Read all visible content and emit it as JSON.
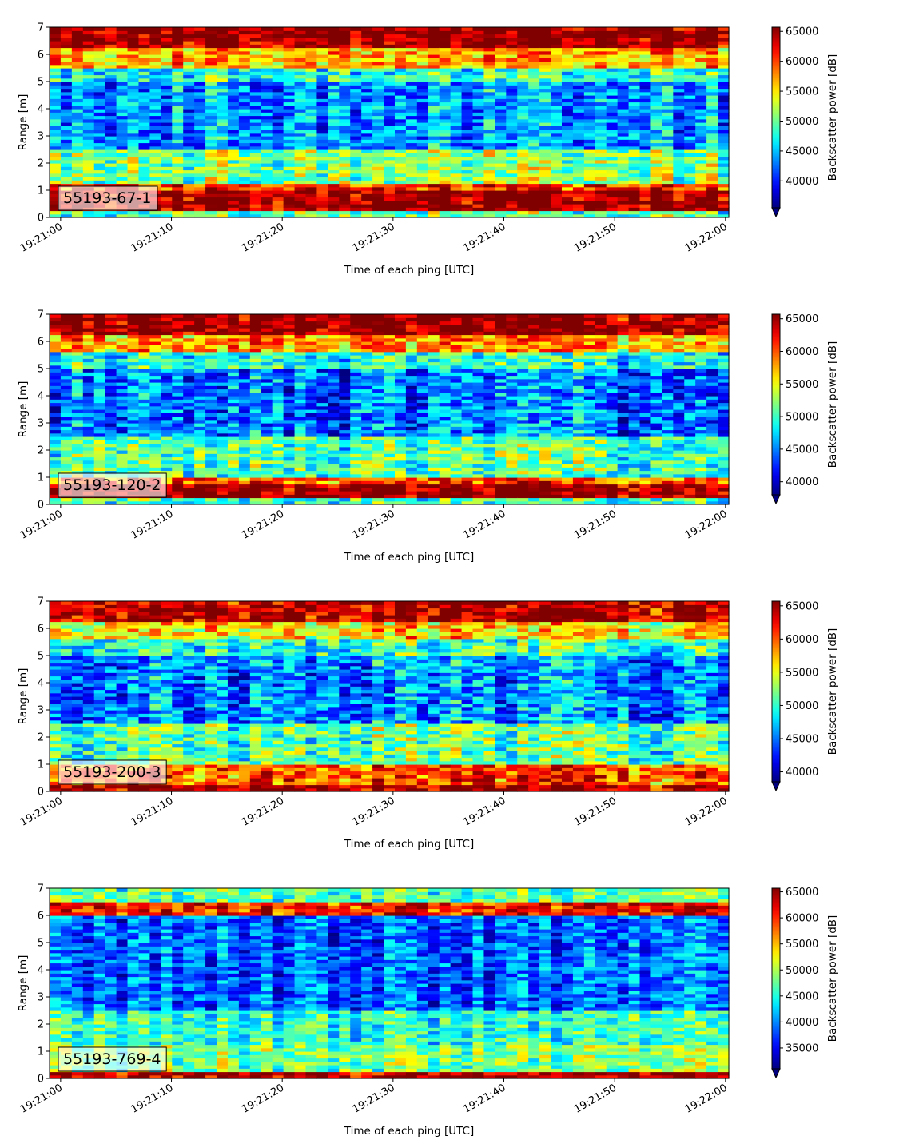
{
  "chart_data": [
    {
      "type": "heatmap",
      "label": "55193-67-1",
      "xlabel": "Time of each ping [UTC]",
      "ylabel": "Range [m]",
      "colorbar_label": "Backscatter power [dB]",
      "colormap": "jet",
      "x_ticks": [
        "19:21:00",
        "19:21:10",
        "19:21:20",
        "19:21:30",
        "19:21:40",
        "19:21:50",
        "19:22:00"
      ],
      "x_range_seconds": [
        -1,
        60.3
      ],
      "y_ticks": [
        0,
        1,
        2,
        3,
        4,
        5,
        6,
        7
      ],
      "ylim": [
        0,
        7
      ],
      "clim": [
        35500,
        65700
      ],
      "colorbar_ticks": [
        40000,
        45000,
        50000,
        55000,
        60000,
        65000
      ],
      "profile": [
        {
          "range": [
            0.0,
            0.25
          ],
          "value": 50000
        },
        {
          "range": [
            0.25,
            1.0
          ],
          "value": 65500
        },
        {
          "range": [
            1.0,
            1.2
          ],
          "value": 61000
        },
        {
          "range": [
            1.2,
            2.5
          ],
          "value": 51000
        },
        {
          "range": [
            2.5,
            5.0
          ],
          "value": 44000
        },
        {
          "range": [
            5.0,
            5.5
          ],
          "value": 48000
        },
        {
          "range": [
            5.5,
            6.2
          ],
          "value": 57000
        },
        {
          "range": [
            6.2,
            7.0
          ],
          "value": 65500
        }
      ]
    },
    {
      "type": "heatmap",
      "label": "55193-120-2",
      "xlabel": "Time of each ping [UTC]",
      "ylabel": "Range [m]",
      "colorbar_label": "Backscatter power [dB]",
      "colormap": "jet",
      "x_ticks": [
        "19:21:00",
        "19:21:10",
        "19:21:20",
        "19:21:30",
        "19:21:40",
        "19:21:50",
        "19:22:00"
      ],
      "x_range_seconds": [
        -1,
        60.3
      ],
      "y_ticks": [
        0,
        1,
        2,
        3,
        4,
        5,
        6,
        7
      ],
      "ylim": [
        0,
        7
      ],
      "clim": [
        38000,
        65700
      ],
      "colorbar_ticks": [
        40000,
        45000,
        50000,
        55000,
        60000,
        65000
      ],
      "profile": [
        {
          "range": [
            0.0,
            0.2
          ],
          "value": 50000
        },
        {
          "range": [
            0.2,
            0.7
          ],
          "value": 65500
        },
        {
          "range": [
            0.7,
            1.0
          ],
          "value": 60000
        },
        {
          "range": [
            1.0,
            2.5
          ],
          "value": 50500
        },
        {
          "range": [
            2.5,
            5.0
          ],
          "value": 44500
        },
        {
          "range": [
            5.0,
            5.6
          ],
          "value": 49000
        },
        {
          "range": [
            5.6,
            6.2
          ],
          "value": 57500
        },
        {
          "range": [
            6.2,
            7.0
          ],
          "value": 65500
        }
      ]
    },
    {
      "type": "heatmap",
      "label": "55193-200-3",
      "xlabel": "Time of each ping [UTC]",
      "ylabel": "Range [m]",
      "colorbar_label": "Backscatter power [dB]",
      "colormap": "jet",
      "x_ticks": [
        "19:21:00",
        "19:21:10",
        "19:21:20",
        "19:21:30",
        "19:21:40",
        "19:21:50",
        "19:22:00"
      ],
      "x_range_seconds": [
        -1,
        60.3
      ],
      "y_ticks": [
        0,
        1,
        2,
        3,
        4,
        5,
        6,
        7
      ],
      "ylim": [
        0,
        7
      ],
      "clim": [
        38500,
        65700
      ],
      "colorbar_ticks": [
        40000,
        45000,
        50000,
        55000,
        60000,
        65000
      ],
      "profile": [
        {
          "range": [
            0.0,
            0.3
          ],
          "value": 65000
        },
        {
          "range": [
            0.3,
            1.0
          ],
          "value": 60000
        },
        {
          "range": [
            1.0,
            2.5
          ],
          "value": 51000
        },
        {
          "range": [
            2.5,
            5.0
          ],
          "value": 45500
        },
        {
          "range": [
            5.0,
            5.6
          ],
          "value": 50000
        },
        {
          "range": [
            5.6,
            6.2
          ],
          "value": 56000
        },
        {
          "range": [
            6.2,
            7.0
          ],
          "value": 64500
        }
      ]
    },
    {
      "type": "heatmap",
      "label": "55193-769-4",
      "xlabel": "Time of each ping [UTC]",
      "ylabel": "Range [m]",
      "colorbar_label": "Backscatter power [dB]",
      "colormap": "jet",
      "x_ticks": [
        "19:21:00",
        "19:21:10",
        "19:21:20",
        "19:21:30",
        "19:21:40",
        "19:21:50",
        "19:22:00"
      ],
      "x_range_seconds": [
        -1,
        60.3
      ],
      "y_ticks": [
        0,
        1,
        2,
        3,
        4,
        5,
        6,
        7
      ],
      "ylim": [
        0,
        7
      ],
      "clim": [
        31000,
        65700
      ],
      "colorbar_ticks": [
        35000,
        40000,
        45000,
        50000,
        55000,
        60000,
        65000
      ],
      "profile": [
        {
          "range": [
            0.0,
            0.3
          ],
          "value": 64000
        },
        {
          "range": [
            0.3,
            1.2
          ],
          "value": 48000
        },
        {
          "range": [
            1.2,
            2.5
          ],
          "value": 45500
        },
        {
          "range": [
            2.5,
            6.0
          ],
          "value": 38500
        },
        {
          "range": [
            6.0,
            6.5
          ],
          "value": 61000
        },
        {
          "range": [
            6.5,
            7.0
          ],
          "value": 47000
        }
      ]
    }
  ]
}
